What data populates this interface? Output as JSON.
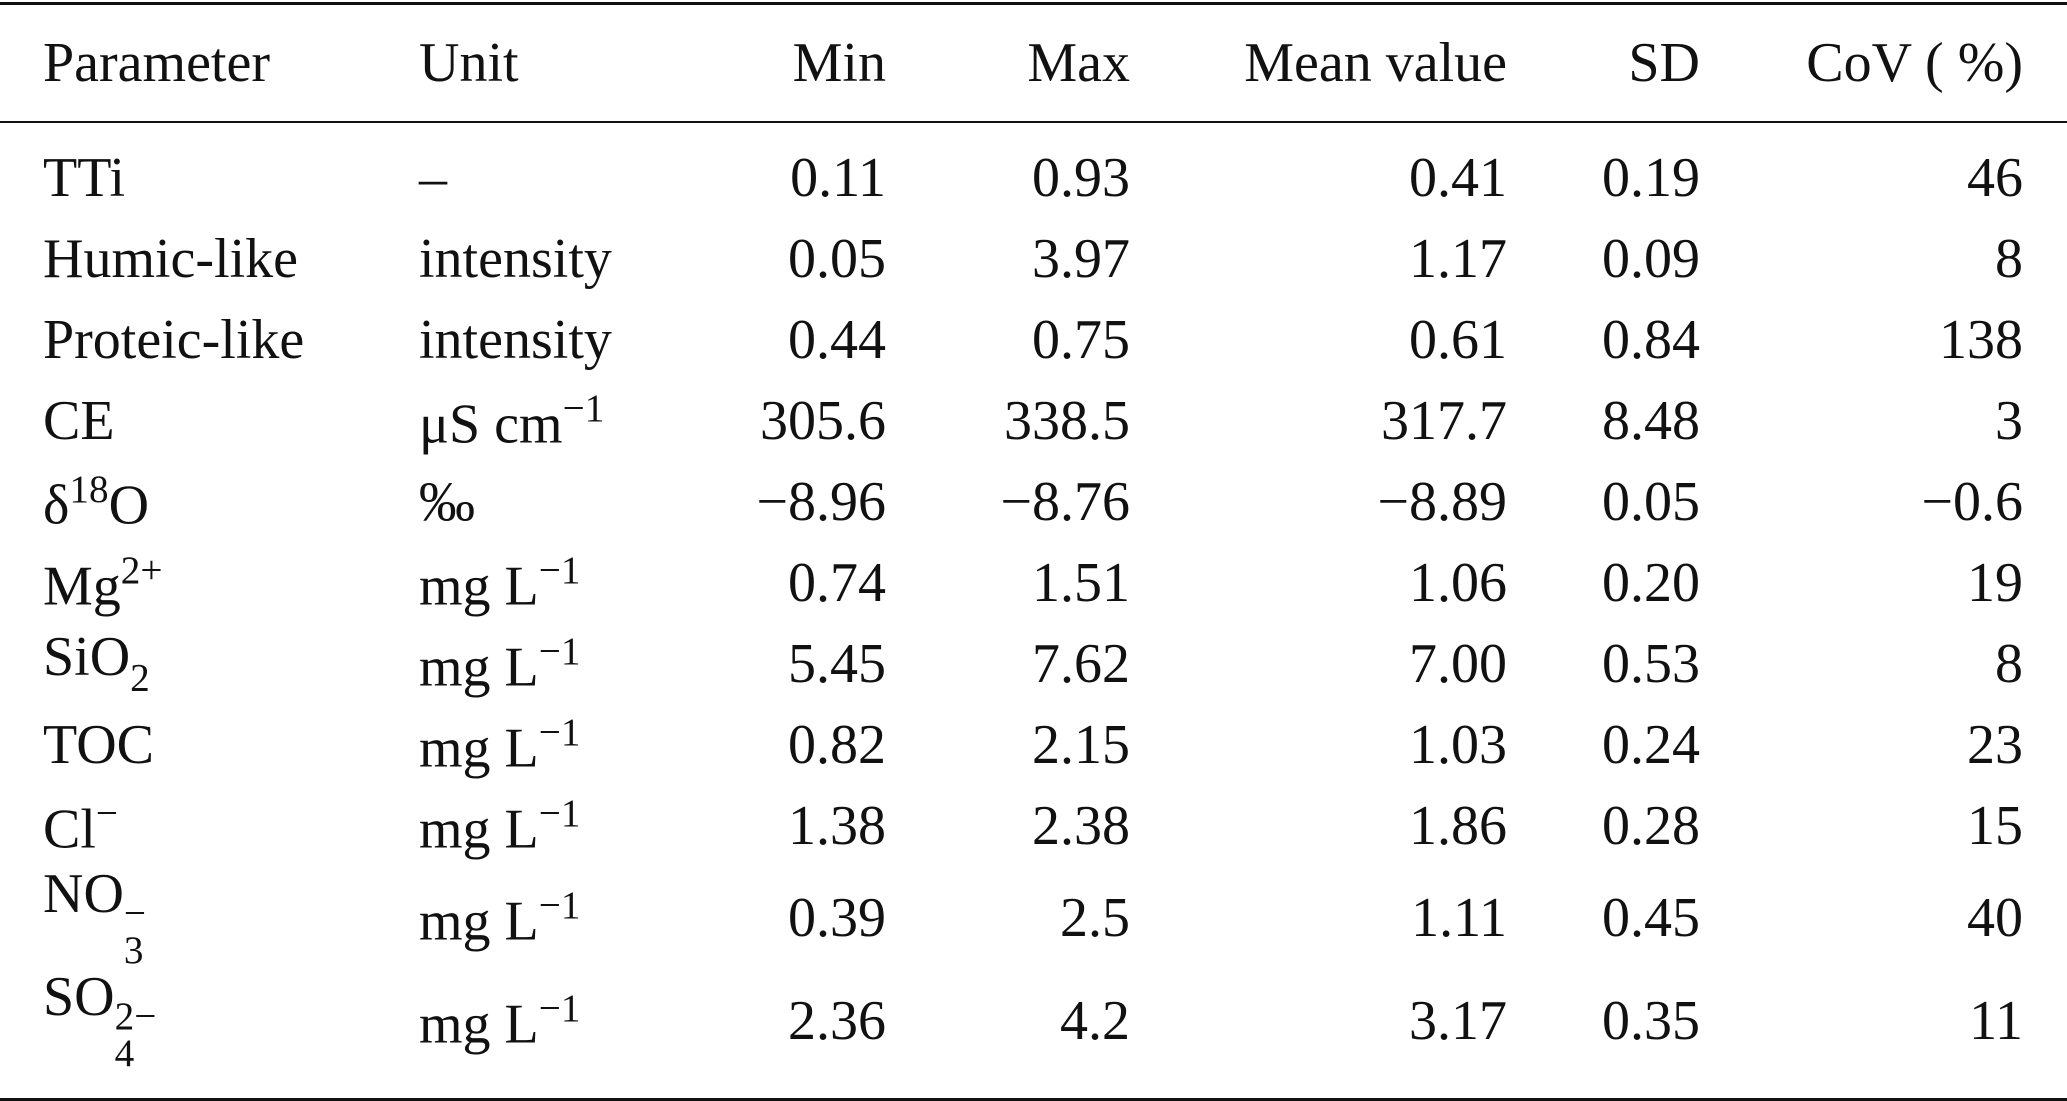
{
  "header": [
    "Parameter",
    "Unit",
    "Min",
    "Max",
    "Mean value",
    "SD",
    "CoV ( %)"
  ],
  "rows": [
    {
      "parameter": {
        "base": "TTi"
      },
      "unit": {
        "base": "–"
      },
      "values": [
        "0.11",
        "0.93",
        "0.41",
        "0.19",
        "46"
      ]
    },
    {
      "parameter": {
        "base": "Humic-like"
      },
      "unit": {
        "base": "intensity"
      },
      "values": [
        "0.05",
        "3.97",
        "1.17",
        "0.09",
        "8"
      ]
    },
    {
      "parameter": {
        "base": "Proteic-like"
      },
      "unit": {
        "base": "intensity"
      },
      "values": [
        "0.44",
        "0.75",
        "0.61",
        "0.84",
        "138"
      ]
    },
    {
      "parameter": {
        "base": "CE"
      },
      "unit": {
        "base": "μS cm",
        "sup": "−1"
      },
      "values": [
        "305.6",
        "338.5",
        "317.7",
        "8.48",
        "3"
      ]
    },
    {
      "parameter": {
        "base": "δ",
        "sup": "18",
        "tail": "O"
      },
      "unit": {
        "base": "‰"
      },
      "values": [
        "−8.96",
        "−8.76",
        "−8.89",
        "0.05",
        "−0.6"
      ]
    },
    {
      "parameter": {
        "base": "Mg",
        "sup": "2+"
      },
      "unit": {
        "base": "mg L",
        "sup": "−1"
      },
      "values": [
        "0.74",
        "1.51",
        "1.06",
        "0.20",
        "19"
      ]
    },
    {
      "parameter": {
        "base": "SiO",
        "sub": "2"
      },
      "unit": {
        "base": "mg L",
        "sup": "−1"
      },
      "values": [
        "5.45",
        "7.62",
        "7.00",
        "0.53",
        "8"
      ]
    },
    {
      "parameter": {
        "base": "TOC"
      },
      "unit": {
        "base": "mg L",
        "sup": "−1"
      },
      "values": [
        "0.82",
        "2.15",
        "1.03",
        "0.24",
        "23"
      ]
    },
    {
      "parameter": {
        "base": "Cl",
        "sup": "−"
      },
      "unit": {
        "base": "mg L",
        "sup": "−1"
      },
      "values": [
        "1.38",
        "2.38",
        "1.86",
        "0.28",
        "15"
      ]
    },
    {
      "parameter": {
        "base": "NO",
        "sub": "3",
        "sup": "−"
      },
      "unit": {
        "base": "mg L",
        "sup": "−1"
      },
      "values": [
        "0.39",
        "2.5",
        "1.11",
        "0.45",
        "40"
      ]
    },
    {
      "parameter": {
        "base": "SO",
        "sub": "4",
        "sup": "2−"
      },
      "unit": {
        "base": "mg L",
        "sup": "−1"
      },
      "values": [
        "2.36",
        "4.2",
        "3.17",
        "0.35",
        "11"
      ]
    }
  ]
}
